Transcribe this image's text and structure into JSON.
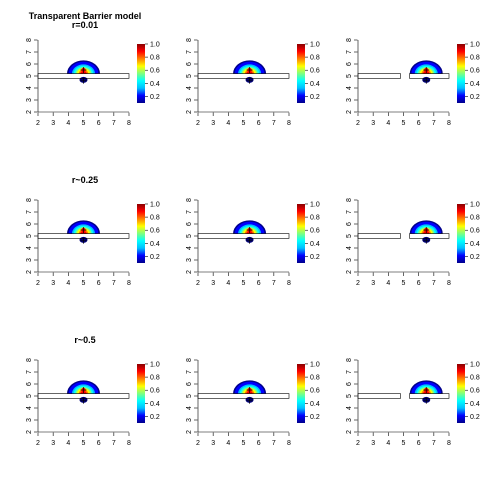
{
  "page_title": "Transparent Barrier model",
  "row_labels": [
    "r=0.01",
    "r~0.25",
    "r~0.5"
  ],
  "colorbar": {
    "ticks": [
      0.2,
      0.4,
      0.6,
      0.8,
      1.0
    ],
    "tick_labels": [
      "0.2",
      "0.4",
      "0.6",
      "0.8",
      "1.0"
    ],
    "colors": [
      "#00008b",
      "#0000ff",
      "#00bfff",
      "#00ffff",
      "#7fff7f",
      "#ffff00",
      "#ff7f00",
      "#ff0000",
      "#8b0000"
    ]
  },
  "chart_data": [
    {
      "type": "heatmap",
      "panel": "r=0.01, left",
      "title": "r=0.01",
      "xlim": [
        2,
        8
      ],
      "ylim": [
        2,
        8
      ],
      "xticks": [
        "2",
        "3",
        "4",
        "5",
        "6",
        "7",
        "8"
      ],
      "yticks": [
        "2",
        "3",
        "4",
        "5",
        "6",
        "7",
        "8"
      ],
      "barrier_y": [
        4.8,
        5.2
      ],
      "barrier_gap": null,
      "source": [
        5.0,
        5.5
      ],
      "cross": [
        5.0,
        4.6
      ],
      "clim": [
        0.1,
        1.0
      ]
    },
    {
      "type": "heatmap",
      "panel": "r=0.01, middle",
      "title": "",
      "xlim": [
        2,
        8
      ],
      "ylim": [
        2,
        8
      ],
      "xticks": [
        "2",
        "3",
        "4",
        "5",
        "6",
        "7",
        "8"
      ],
      "yticks": [
        "2",
        "3",
        "4",
        "5",
        "6",
        "7",
        "8"
      ],
      "barrier_y": [
        4.8,
        5.2
      ],
      "barrier_gap": null,
      "source": [
        5.4,
        5.5
      ],
      "cross": [
        5.4,
        4.6
      ],
      "clim": [
        0.1,
        1.0
      ]
    },
    {
      "type": "heatmap",
      "panel": "r=0.01, right",
      "title": "",
      "xlim": [
        2,
        8
      ],
      "ylim": [
        2,
        8
      ],
      "xticks": [
        "2",
        "3",
        "4",
        "5",
        "6",
        "7",
        "8"
      ],
      "yticks": [
        "2",
        "3",
        "4",
        "5",
        "6",
        "7",
        "8"
      ],
      "barrier_y": [
        4.8,
        5.2
      ],
      "barrier_gap": [
        4.8,
        5.4
      ],
      "source": [
        6.5,
        5.5
      ],
      "cross": [
        6.5,
        4.6
      ],
      "clim": [
        0.1,
        1.0
      ]
    },
    {
      "type": "heatmap",
      "panel": "r~0.25, left",
      "title": "r~0.25",
      "xlim": [
        2,
        8
      ],
      "ylim": [
        2,
        8
      ],
      "xticks": [
        "2",
        "3",
        "4",
        "5",
        "6",
        "7",
        "8"
      ],
      "yticks": [
        "2",
        "3",
        "4",
        "5",
        "6",
        "7",
        "8"
      ],
      "barrier_y": [
        4.8,
        5.2
      ],
      "barrier_gap": null,
      "source": [
        5.0,
        5.5
      ],
      "cross": [
        5.0,
        4.6
      ],
      "clim": [
        0.1,
        1.0
      ]
    },
    {
      "type": "heatmap",
      "panel": "r~0.25, middle",
      "title": "",
      "xlim": [
        2,
        8
      ],
      "ylim": [
        2,
        8
      ],
      "xticks": [
        "2",
        "3",
        "4",
        "5",
        "6",
        "7",
        "8"
      ],
      "yticks": [
        "2",
        "3",
        "4",
        "5",
        "6",
        "7",
        "8"
      ],
      "barrier_y": [
        4.8,
        5.2
      ],
      "barrier_gap": null,
      "source": [
        5.4,
        5.5
      ],
      "cross": [
        5.4,
        4.6
      ],
      "clim": [
        0.1,
        1.0
      ]
    },
    {
      "type": "heatmap",
      "panel": "r~0.25, right",
      "title": "",
      "xlim": [
        2,
        8
      ],
      "ylim": [
        2,
        8
      ],
      "xticks": [
        "2",
        "3",
        "4",
        "5",
        "6",
        "7",
        "8"
      ],
      "yticks": [
        "2",
        "3",
        "4",
        "5",
        "6",
        "7",
        "8"
      ],
      "barrier_y": [
        4.8,
        5.2
      ],
      "barrier_gap": [
        4.8,
        5.4
      ],
      "source": [
        6.5,
        5.5
      ],
      "cross": [
        6.5,
        4.6
      ],
      "clim": [
        0.1,
        1.0
      ]
    },
    {
      "type": "heatmap",
      "panel": "r~0.5, left",
      "title": "r~0.5",
      "xlim": [
        2,
        8
      ],
      "ylim": [
        2,
        8
      ],
      "xticks": [
        "2",
        "3",
        "4",
        "5",
        "6",
        "7",
        "8"
      ],
      "yticks": [
        "2",
        "3",
        "4",
        "5",
        "6",
        "7",
        "8"
      ],
      "barrier_y": [
        4.8,
        5.2
      ],
      "barrier_gap": null,
      "source": [
        5.0,
        5.5
      ],
      "cross": [
        5.0,
        4.6
      ],
      "clim": [
        0.1,
        1.0
      ]
    },
    {
      "type": "heatmap",
      "panel": "r~0.5, middle",
      "title": "",
      "xlim": [
        2,
        8
      ],
      "ylim": [
        2,
        8
      ],
      "xticks": [
        "2",
        "3",
        "4",
        "5",
        "6",
        "7",
        "8"
      ],
      "yticks": [
        "2",
        "3",
        "4",
        "5",
        "6",
        "7",
        "8"
      ],
      "barrier_y": [
        4.8,
        5.2
      ],
      "barrier_gap": null,
      "source": [
        5.4,
        5.5
      ],
      "cross": [
        5.4,
        4.6
      ],
      "clim": [
        0.1,
        1.0
      ]
    },
    {
      "type": "heatmap",
      "panel": "r~0.5, right",
      "title": "",
      "xlim": [
        2,
        8
      ],
      "ylim": [
        2,
        8
      ],
      "xticks": [
        "2",
        "3",
        "4",
        "5",
        "6",
        "7",
        "8"
      ],
      "yticks": [
        "2",
        "3",
        "4",
        "5",
        "6",
        "7",
        "8"
      ],
      "barrier_y": [
        4.8,
        5.2
      ],
      "barrier_gap": [
        4.8,
        5.4
      ],
      "source": [
        6.5,
        5.5
      ],
      "cross": [
        6.5,
        4.6
      ],
      "clim": [
        0.1,
        1.0
      ]
    }
  ]
}
